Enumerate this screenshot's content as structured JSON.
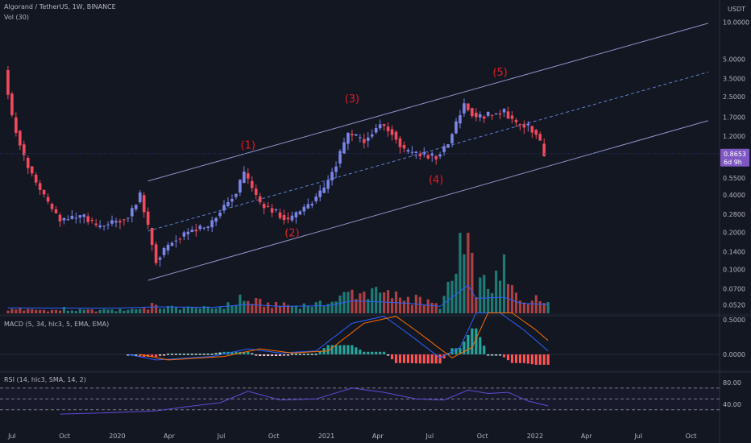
{
  "header": {
    "symbol": "Algorand / TetherUS, 1W, BINANCE",
    "volume": "Vol (30)",
    "macd": "MACD (5, 34, hlc3, 5, EMA, EMA)",
    "rsi": "RSI (14, hlc3, SMA, 14, 2)"
  },
  "price_axis": {
    "currency_label": "USDT",
    "ticks": [
      {
        "value": 10.0,
        "label": "10.0000"
      },
      {
        "value": 5.0,
        "label": "5.0000"
      },
      {
        "value": 3.5,
        "label": "3.5000"
      },
      {
        "value": 2.5,
        "label": "2.5000"
      },
      {
        "value": 1.7,
        "label": "1.7000"
      },
      {
        "value": 1.2,
        "label": "1.2000"
      },
      {
        "value": 0.55,
        "label": "0.5500"
      },
      {
        "value": 0.4,
        "label": "0.4000"
      },
      {
        "value": 0.28,
        "label": "0.2800"
      },
      {
        "value": 0.2,
        "label": "0.2000"
      },
      {
        "value": 0.14,
        "label": "0.1400"
      },
      {
        "value": 0.1,
        "label": "0.1000"
      },
      {
        "value": 0.07,
        "label": "0.0700"
      },
      {
        "value": 0.052,
        "label": "0.0520"
      }
    ],
    "last_price": {
      "value": 0.8653,
      "label": "0.8653",
      "countdown": "6d 9h"
    }
  },
  "macd_axis": {
    "ticks": [
      {
        "value": 0.5,
        "label": "0.5000"
      },
      {
        "value": 0.0,
        "label": "0.0000"
      }
    ]
  },
  "rsi_axis": {
    "ticks": [
      {
        "value": 80,
        "label": "80.00"
      },
      {
        "value": 40,
        "label": "40.00"
      }
    ]
  },
  "time_axis": {
    "ticks": [
      {
        "date": "2019-07-01",
        "label": "Jul"
      },
      {
        "date": "2019-10-01",
        "label": "Oct"
      },
      {
        "date": "2020-01-01",
        "label": "2020"
      },
      {
        "date": "2020-04-01",
        "label": "Apr"
      },
      {
        "date": "2020-07-01",
        "label": "Jul"
      },
      {
        "date": "2020-10-01",
        "label": "Oct"
      },
      {
        "date": "2021-01-01",
        "label": "2021"
      },
      {
        "date": "2021-04-01",
        "label": "Apr"
      },
      {
        "date": "2021-07-01",
        "label": "Jul"
      },
      {
        "date": "2021-10-01",
        "label": "Oct"
      },
      {
        "date": "2022-01-01",
        "label": "2022"
      },
      {
        "date": "2022-04-01",
        "label": "Apr"
      },
      {
        "date": "2022-07-01",
        "label": "Jul"
      },
      {
        "date": "2022-10-01",
        "label": "Oct"
      }
    ]
  },
  "chart_data": {
    "type": "candlestick",
    "interval": "1W",
    "scale": "log",
    "ylim": [
      0.045,
      13.0
    ],
    "xlim": [
      "2019-06-10",
      "2022-11-20"
    ],
    "colors": {
      "up": "#7b84e8",
      "down": "#f2495c",
      "vol_up": "#26a69a",
      "vol_down": "#ef5350",
      "channel": "#8c93c9",
      "midline": "#5f7fd0",
      "wave_label": "#e31b23",
      "macd_line": "#2962ff",
      "signal_line": "#ff6d00",
      "rsi_line": "#5c4bd8",
      "last_price": "#7e57c2"
    },
    "price_path": [
      [
        "2019-06-24",
        4.1
      ],
      [
        "2019-07-08",
        1.7
      ],
      [
        "2019-07-29",
        0.8
      ],
      [
        "2019-08-19",
        0.5
      ],
      [
        "2019-09-09",
        0.34
      ],
      [
        "2019-09-30",
        0.25
      ],
      [
        "2019-10-21",
        0.26
      ],
      [
        "2019-11-11",
        0.27
      ],
      [
        "2019-12-02",
        0.22
      ],
      [
        "2019-12-30",
        0.24
      ],
      [
        "2020-01-27",
        0.27
      ],
      [
        "2020-02-17",
        0.4
      ],
      [
        "2020-03-09",
        0.16
      ],
      [
        "2020-03-16",
        0.12
      ],
      [
        "2020-04-13",
        0.17
      ],
      [
        "2020-05-18",
        0.21
      ],
      [
        "2020-06-15",
        0.22
      ],
      [
        "2020-07-06",
        0.3
      ],
      [
        "2020-08-03",
        0.42
      ],
      [
        "2020-08-17",
        0.6
      ],
      [
        "2020-09-14",
        0.34
      ],
      [
        "2020-10-12",
        0.29
      ],
      [
        "2020-11-02",
        0.25
      ],
      [
        "2020-12-07",
        0.33
      ],
      [
        "2021-01-04",
        0.45
      ],
      [
        "2021-01-25",
        0.72
      ],
      [
        "2021-02-15",
        1.25
      ],
      [
        "2021-03-15",
        1.1
      ],
      [
        "2021-04-12",
        1.5
      ],
      [
        "2021-05-03",
        1.3
      ],
      [
        "2021-05-24",
        0.9
      ],
      [
        "2021-06-21",
        0.85
      ],
      [
        "2021-07-19",
        0.82
      ],
      [
        "2021-08-09",
        1.05
      ],
      [
        "2021-09-06",
        2.2
      ],
      [
        "2021-09-27",
        1.7
      ],
      [
        "2021-10-25",
        1.8
      ],
      [
        "2021-11-15",
        1.9
      ],
      [
        "2021-12-06",
        1.5
      ],
      [
        "2021-12-27",
        1.45
      ],
      [
        "2022-01-10",
        1.25
      ],
      [
        "2022-01-24",
        0.87
      ]
    ],
    "channel": {
      "upper": [
        [
          "2020-02-24",
          0.52
        ],
        [
          "2022-10-31",
          9.8
        ]
      ],
      "lower": [
        [
          "2020-02-24",
          0.082
        ],
        [
          "2022-10-31",
          1.6
        ]
      ],
      "middle": [
        [
          "2020-02-24",
          0.205
        ],
        [
          "2022-10-31",
          3.95
        ]
      ]
    },
    "wave_labels": [
      {
        "label": "(1)",
        "date": "2020-08-17",
        "price": 0.95
      },
      {
        "label": "(2)",
        "date": "2020-11-02",
        "price": 0.185
      },
      {
        "label": "(3)",
        "date": "2021-02-15",
        "price": 2.25
      },
      {
        "label": "(4)",
        "date": "2021-07-12",
        "price": 0.5
      },
      {
        "label": "(5)",
        "date": "2021-11-01",
        "price": 3.7
      }
    ],
    "volume_profile": [
      [
        "2019-06-24",
        0.06
      ],
      [
        "2019-10-01",
        0.05
      ],
      [
        "2020-01-01",
        0.05
      ],
      [
        "2020-03-09",
        0.1
      ],
      [
        "2020-06-15",
        0.08
      ],
      [
        "2020-08-17",
        0.2
      ],
      [
        "2020-10-12",
        0.12
      ],
      [
        "2021-01-04",
        0.15
      ],
      [
        "2021-02-15",
        0.35
      ],
      [
        "2021-04-12",
        0.3
      ],
      [
        "2021-05-24",
        0.25
      ],
      [
        "2021-07-19",
        0.12
      ],
      [
        "2021-09-06",
        1.0
      ],
      [
        "2021-09-20",
        0.45
      ],
      [
        "2021-11-08",
        0.5
      ],
      [
        "2021-12-06",
        0.25
      ],
      [
        "2022-01-24",
        0.2
      ]
    ],
    "macd_path": [
      [
        "2020-01-20",
        0.0
      ],
      [
        "2020-03-09",
        -0.08
      ],
      [
        "2020-06-15",
        -0.03
      ],
      [
        "2020-08-17",
        0.08
      ],
      [
        "2020-10-12",
        0.02
      ],
      [
        "2020-12-14",
        0.05
      ],
      [
        "2021-02-15",
        0.45
      ],
      [
        "2021-04-12",
        0.55
      ],
      [
        "2021-05-24",
        0.3
      ],
      [
        "2021-07-19",
        -0.05
      ],
      [
        "2021-08-23",
        0.1
      ],
      [
        "2021-09-20",
        0.6
      ],
      [
        "2021-11-01",
        0.6
      ],
      [
        "2021-12-13",
        0.35
      ],
      [
        "2022-01-24",
        0.05
      ]
    ],
    "rsi_path": [
      [
        "2019-09-23",
        22
      ],
      [
        "2019-12-02",
        24
      ],
      [
        "2020-03-09",
        28
      ],
      [
        "2020-05-04",
        36
      ],
      [
        "2020-06-29",
        43
      ],
      [
        "2020-08-17",
        64
      ],
      [
        "2020-10-12",
        48
      ],
      [
        "2020-12-14",
        50
      ],
      [
        "2021-02-15",
        70
      ],
      [
        "2021-04-12",
        62
      ],
      [
        "2021-06-07",
        50
      ],
      [
        "2021-07-26",
        48
      ],
      [
        "2021-09-06",
        66
      ],
      [
        "2021-10-11",
        60
      ],
      [
        "2021-11-15",
        62
      ],
      [
        "2021-12-20",
        46
      ],
      [
        "2022-01-24",
        37
      ]
    ],
    "rsi_levels": [
      70,
      50,
      30
    ]
  }
}
